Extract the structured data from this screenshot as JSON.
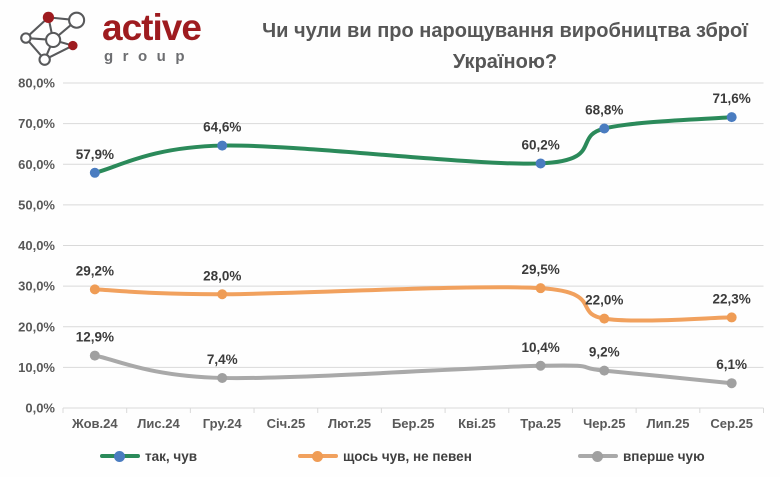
{
  "logo": {
    "brand": "active",
    "subbrand": "group",
    "colors": {
      "red": "#9e1b1f",
      "gray": "#6d6e71",
      "node_outline": "#58595b"
    }
  },
  "header": {
    "title": "Чи чули ви про нарощування виробництва зброї Україною?"
  },
  "chart_data": {
    "type": "line",
    "title": "Чи чули ви про нарощування виробництва зброї Україною?",
    "smooth": true,
    "grid": true,
    "legend_position": "bottom",
    "categories": [
      "Жов.24",
      "Лис.24",
      "Гру.24",
      "Січ.25",
      "Лют.25",
      "Бер.25",
      "Кві.25",
      "Тра.25",
      "Чер.25",
      "Лип.25",
      "Сер.25"
    ],
    "y_axis": {
      "min": 0,
      "max": 80,
      "tick_labels": [
        "0,0%",
        "10,0%",
        "20,0%",
        "30,0%",
        "40,0%",
        "50,0%",
        "60,0%",
        "70,0%",
        "80,0%"
      ],
      "gridline_color": "#d9d9d9"
    },
    "series": [
      {
        "name": "так, чув",
        "line_color": "#2b8a5a",
        "marker_color": "#4a7cc0",
        "points": [
          {
            "category": "Жов.24",
            "value": 57.9,
            "label": "57,9%"
          },
          {
            "category": "Гру.24",
            "value": 64.6,
            "label": "64,6%"
          },
          {
            "category": "Тра.25",
            "value": 60.2,
            "label": "60,2%"
          },
          {
            "category": "Чер.25",
            "value": 68.8,
            "label": "68,8%"
          },
          {
            "category": "Сер.25",
            "value": 71.6,
            "label": "71,6%"
          }
        ]
      },
      {
        "name": "щось чув, не певен",
        "line_color": "#f1a15e",
        "marker_color": "#ef9c55",
        "points": [
          {
            "category": "Жов.24",
            "value": 29.2,
            "label": "29,2%"
          },
          {
            "category": "Гру.24",
            "value": 28.0,
            "label": "28,0%"
          },
          {
            "category": "Тра.25",
            "value": 29.5,
            "label": "29,5%"
          },
          {
            "category": "Чер.25",
            "value": 22.0,
            "label": "22,0%"
          },
          {
            "category": "Сер.25",
            "value": 22.3,
            "label": "22,3%"
          }
        ]
      },
      {
        "name": "вперше чую",
        "line_color": "#a9a9a9",
        "marker_color": "#a0a0a0",
        "points": [
          {
            "category": "Жов.24",
            "value": 12.9,
            "label": "12,9%"
          },
          {
            "category": "Гру.24",
            "value": 7.4,
            "label": "7,4%"
          },
          {
            "category": "Тра.25",
            "value": 10.4,
            "label": "10,4%"
          },
          {
            "category": "Чер.25",
            "value": 9.2,
            "label": "9,2%"
          },
          {
            "category": "Сер.25",
            "value": 6.1,
            "label": "6,1%"
          }
        ]
      }
    ]
  }
}
